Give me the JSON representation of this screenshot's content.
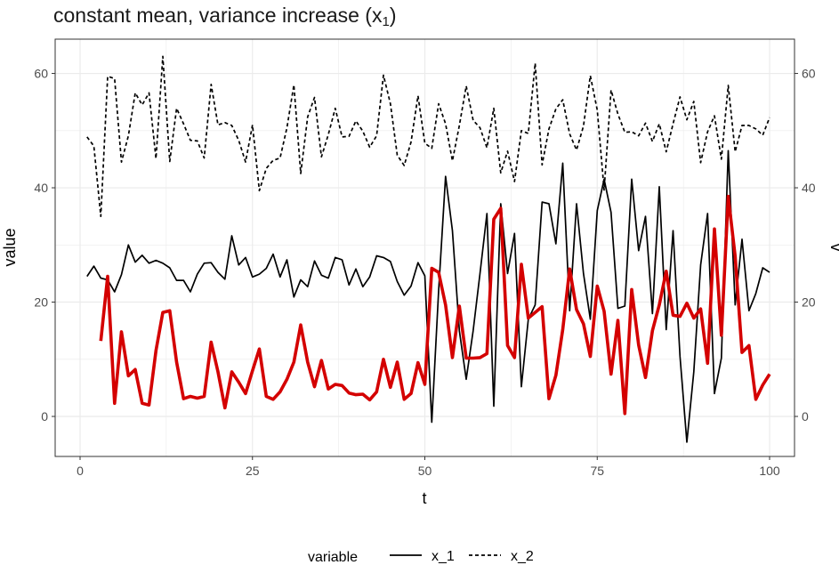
{
  "title_parts": {
    "main": "constant mean, variance increase (x",
    "sub": "1",
    "close": ")"
  },
  "colors": {
    "x_1": "#000000",
    "x_2": "#000000",
    "overlay": "#d40000",
    "grid": "#ebebeb",
    "panel_border": "#333333"
  },
  "chart_data": {
    "type": "line",
    "xlabel": "t",
    "ylabel": "value",
    "ylabel_right": "v",
    "xlim": [
      0,
      100
    ],
    "ylim": [
      -7,
      66
    ],
    "xticks": [
      0,
      25,
      50,
      75,
      100
    ],
    "yticks": [
      0,
      20,
      40,
      60
    ],
    "grid": true,
    "legend": {
      "title": "variable",
      "position": "bottom",
      "entries": [
        "x_1",
        "x_2"
      ]
    },
    "series": [
      {
        "name": "x_1",
        "style": "solid",
        "x_start": 1,
        "values": [
          24.5,
          26.3,
          24.2,
          23.9,
          21.8,
          24.8,
          30.0,
          27.0,
          28.2,
          26.8,
          27.3,
          26.8,
          26.0,
          23.8,
          23.8,
          21.8,
          24.9,
          26.8,
          26.9,
          25.2,
          24.0,
          31.6,
          26.5,
          27.8,
          24.4,
          24.9,
          25.9,
          28.4,
          24.4,
          27.4,
          20.9,
          23.9,
          22.7,
          27.2,
          24.7,
          24.2,
          27.8,
          27.4,
          23.0,
          25.8,
          22.7,
          24.4,
          28.1,
          27.8,
          27.1,
          23.6,
          21.2,
          22.8,
          26.9,
          24.6,
          -1.0,
          22.0,
          42.0,
          32.5,
          15.0,
          6.5,
          15.0,
          25.0,
          35.5,
          1.8,
          37.2,
          25.0,
          32.0,
          5.2,
          17.0,
          19.5,
          37.5,
          37.2,
          30.2,
          44.3,
          18.5,
          37.2,
          25.0,
          17.0,
          36.0,
          41.5,
          35.7,
          18.9,
          19.3,
          41.5,
          29.0,
          35.0,
          18.0,
          40.2,
          15.2,
          32.5,
          10.5,
          -4.5,
          7.8,
          26.5,
          35.5,
          4.0,
          10.2,
          46.5,
          19.5,
          31.0,
          18.5,
          21.5,
          26.0,
          25.2
        ]
      },
      {
        "name": "x_2",
        "style": "dashed",
        "x_start": 1,
        "values": [
          48.9,
          47.3,
          35.0,
          59.5,
          59.1,
          44.5,
          49.1,
          56.6,
          54.5,
          56.6,
          45.1,
          63.0,
          44.6,
          53.9,
          51.2,
          48.3,
          48.2,
          45.2,
          58.1,
          51.0,
          51.4,
          50.9,
          48.3,
          44.5,
          51.0,
          39.5,
          43.4,
          44.8,
          45.2,
          50.5,
          58.0,
          42.5,
          52.4,
          55.8,
          45.4,
          49.3,
          53.9,
          48.9,
          49.0,
          51.7,
          49.9,
          47.1,
          49.1,
          59.7,
          54.7,
          45.7,
          43.9,
          48.0,
          56.1,
          47.8,
          46.9,
          54.7,
          51.2,
          44.7,
          50.9,
          57.8,
          51.8,
          50.5,
          47.0,
          53.9,
          42.6,
          46.4,
          41.1,
          50.0,
          49.5,
          61.8,
          44.0,
          50.3,
          53.8,
          55.4,
          49.4,
          46.6,
          50.8,
          59.6,
          53.6,
          39.6,
          57.1,
          52.9,
          49.7,
          49.8,
          49.1,
          51.3,
          48.1,
          51.2,
          46.3,
          51.2,
          55.9,
          51.9,
          55.1,
          44.4,
          49.8,
          52.6,
          45.0,
          57.9,
          46.3,
          50.9,
          50.9,
          50.3,
          49.2,
          52.3
        ]
      },
      {
        "name": "",
        "style": "solid-thick",
        "x_start": 3,
        "values": [
          13.2,
          24.5,
          2.3,
          14.8,
          7.1,
          8.2,
          2.3,
          2.0,
          11.5,
          18.2,
          18.5,
          9.5,
          3.1,
          3.5,
          3.2,
          3.5,
          13.0,
          7.8,
          1.5,
          7.8,
          6.0,
          4.0,
          8.0,
          11.8,
          3.5,
          3.0,
          4.3,
          6.5,
          9.5,
          16.0,
          9.5,
          5.2,
          9.8,
          4.8,
          5.6,
          5.4,
          4.1,
          3.8,
          3.9,
          2.9,
          4.3,
          10.0,
          5.1,
          9.5,
          3.0,
          4.0,
          9.4,
          5.6,
          25.9,
          25.2,
          19.5,
          10.3,
          19.3,
          10.2,
          10.2,
          10.3,
          11.0,
          34.5,
          36.4,
          12.4,
          10.3,
          26.6,
          17.2,
          18.2,
          19.2,
          3.1,
          7.2,
          15.2,
          25.8,
          18.7,
          16.2,
          10.5,
          22.8,
          18.4,
          7.4,
          16.8,
          0.5,
          22.2,
          12.5,
          6.8,
          15.0,
          19.5,
          25.4,
          17.7,
          17.5,
          19.8,
          17.2,
          18.8,
          9.3,
          32.8,
          14.2,
          38.5,
          28.0,
          11.2,
          12.4,
          3.0,
          5.5,
          7.4
        ]
      }
    ]
  }
}
